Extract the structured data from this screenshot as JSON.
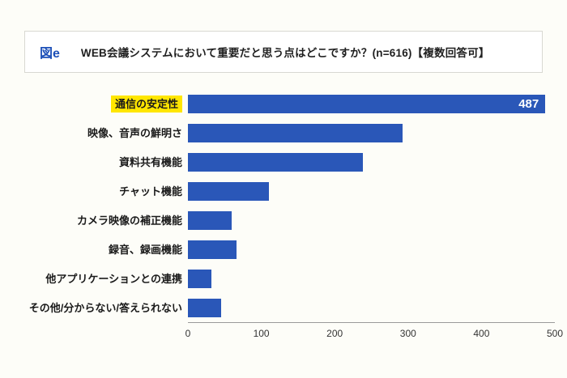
{
  "header": {
    "figure_label": "図e",
    "title": "WEB会議システムにおいて重要だと思う点はどこですか？(n=616)【複数回答可】"
  },
  "chart_data": {
    "type": "bar",
    "orientation": "horizontal",
    "title": "WEB会議システムにおいて重要だと思う点はどこですか？(n=616)【複数回答可】",
    "categories": [
      "通信の安定性",
      "映像、音声の鮮明さ",
      "資料共有機能",
      "チャット機能",
      "カメラ映像の補正機能",
      "録音、録画機能",
      "他アプリケーションとの連携",
      "その他/分からない/答えられない"
    ],
    "values": [
      487,
      293,
      238,
      110,
      60,
      66,
      32,
      45
    ],
    "xlim": [
      0,
      500
    ],
    "x_ticks": [
      0,
      100,
      200,
      300,
      400,
      500
    ],
    "grid": false,
    "legend": false,
    "bar_color": "#2a57b8",
    "highlight_color": "#ffe600",
    "highlighted_category_index": 0,
    "data_label": {
      "index": 0,
      "text": "487",
      "color": "#ffffff"
    }
  }
}
